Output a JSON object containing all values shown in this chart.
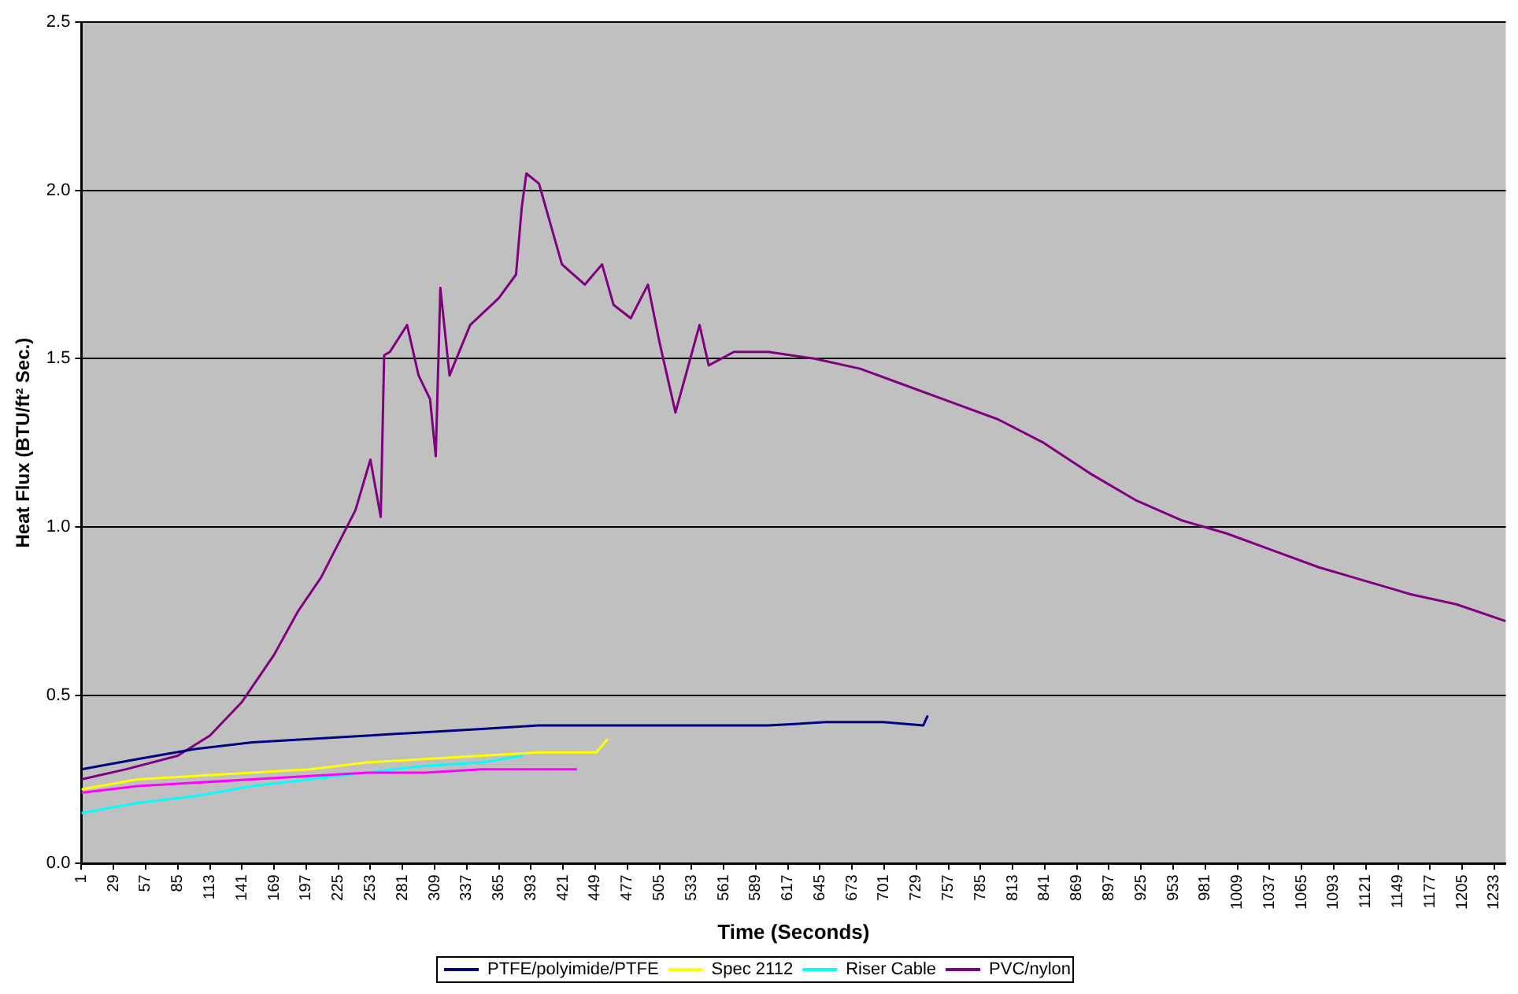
{
  "chart_data": {
    "type": "line",
    "xlabel": "Time (Seconds)",
    "ylabel": "Heat Flux (BTU/ft² Sec.)",
    "grid": "y",
    "legend": "bottom",
    "marker": "none",
    "line_style": "solid",
    "xlim": [
      1,
      1243
    ],
    "xticks": [
      1,
      29,
      57,
      85,
      113,
      141,
      169,
      197,
      225,
      253,
      281,
      309,
      337,
      365,
      393,
      421,
      449,
      477,
      505,
      533,
      561,
      589,
      617,
      645,
      673,
      701,
      729,
      757,
      785,
      813,
      841,
      869,
      897,
      925,
      953,
      981,
      1009,
      1037,
      1065,
      1093,
      1121,
      1149,
      1177,
      1205,
      1233
    ],
    "ylim": [
      0,
      2.5
    ],
    "yticks": [
      {
        "value": 0,
        "label": "0.0"
      },
      {
        "value": 0.5,
        "label": "0.5"
      },
      {
        "value": 1,
        "label": "1.0"
      },
      {
        "value": 1.5,
        "label": "1.5"
      },
      {
        "value": 2,
        "label": "2.0"
      },
      {
        "value": 2.5,
        "label": "2.5"
      }
    ],
    "series": [
      {
        "name": "PTFE/polyimide/PTFE",
        "color": "#000080",
        "x": [
          1,
          50,
          100,
          150,
          200,
          250,
          300,
          350,
          400,
          450,
          500,
          550,
          600,
          650,
          700,
          735,
          739
        ],
        "values": [
          0.28,
          0.31,
          0.34,
          0.36,
          0.37,
          0.38,
          0.39,
          0.4,
          0.41,
          0.41,
          0.41,
          0.41,
          0.41,
          0.42,
          0.42,
          0.41,
          0.44
        ]
      },
      {
        "color": "#ff00ff",
        "x": [
          1,
          50,
          100,
          150,
          200,
          250,
          300,
          350,
          400,
          433
        ],
        "values": [
          0.21,
          0.23,
          0.24,
          0.25,
          0.26,
          0.27,
          0.27,
          0.28,
          0.28,
          0.28
        ]
      },
      {
        "name": "Spec 2112",
        "color": "#ffff00",
        "x": [
          1,
          50,
          100,
          150,
          200,
          250,
          300,
          350,
          400,
          450,
          460
        ],
        "values": [
          0.22,
          0.25,
          0.26,
          0.27,
          0.28,
          0.3,
          0.31,
          0.32,
          0.33,
          0.33,
          0.37
        ]
      },
      {
        "name": "Riser Cable",
        "color": "#00ffff",
        "x": [
          1,
          50,
          100,
          150,
          200,
          250,
          300,
          350,
          386
        ],
        "values": [
          0.15,
          0.18,
          0.2,
          0.23,
          0.25,
          0.27,
          0.29,
          0.3,
          0.32
        ]
      },
      {
        "name": "PVC/nylon",
        "color": "#800080",
        "x": [
          1,
          40,
          85,
          113,
          141,
          169,
          190,
          210,
          225,
          240,
          253,
          262,
          265,
          270,
          285,
          295,
          305,
          310,
          314,
          322,
          340,
          365,
          380,
          385,
          389,
          400,
          410,
          420,
          440,
          455,
          465,
          480,
          495,
          505,
          519,
          540,
          548,
          570,
          600,
          640,
          680,
          720,
          760,
          800,
          840,
          880,
          920,
          960,
          1000,
          1040,
          1080,
          1120,
          1160,
          1200,
          1243
        ],
        "values": [
          0.25,
          0.28,
          0.32,
          0.38,
          0.48,
          0.62,
          0.75,
          0.85,
          0.95,
          1.05,
          1.2,
          1.03,
          1.51,
          1.52,
          1.6,
          1.45,
          1.38,
          1.21,
          1.71,
          1.45,
          1.6,
          1.68,
          1.75,
          1.95,
          2.05,
          2.02,
          1.9,
          1.78,
          1.72,
          1.78,
          1.66,
          1.62,
          1.72,
          1.55,
          1.34,
          1.6,
          1.48,
          1.52,
          1.52,
          1.5,
          1.47,
          1.42,
          1.37,
          1.32,
          1.25,
          1.16,
          1.08,
          1.02,
          0.98,
          0.93,
          0.88,
          0.84,
          0.8,
          0.77,
          0.72
        ]
      }
    ]
  }
}
